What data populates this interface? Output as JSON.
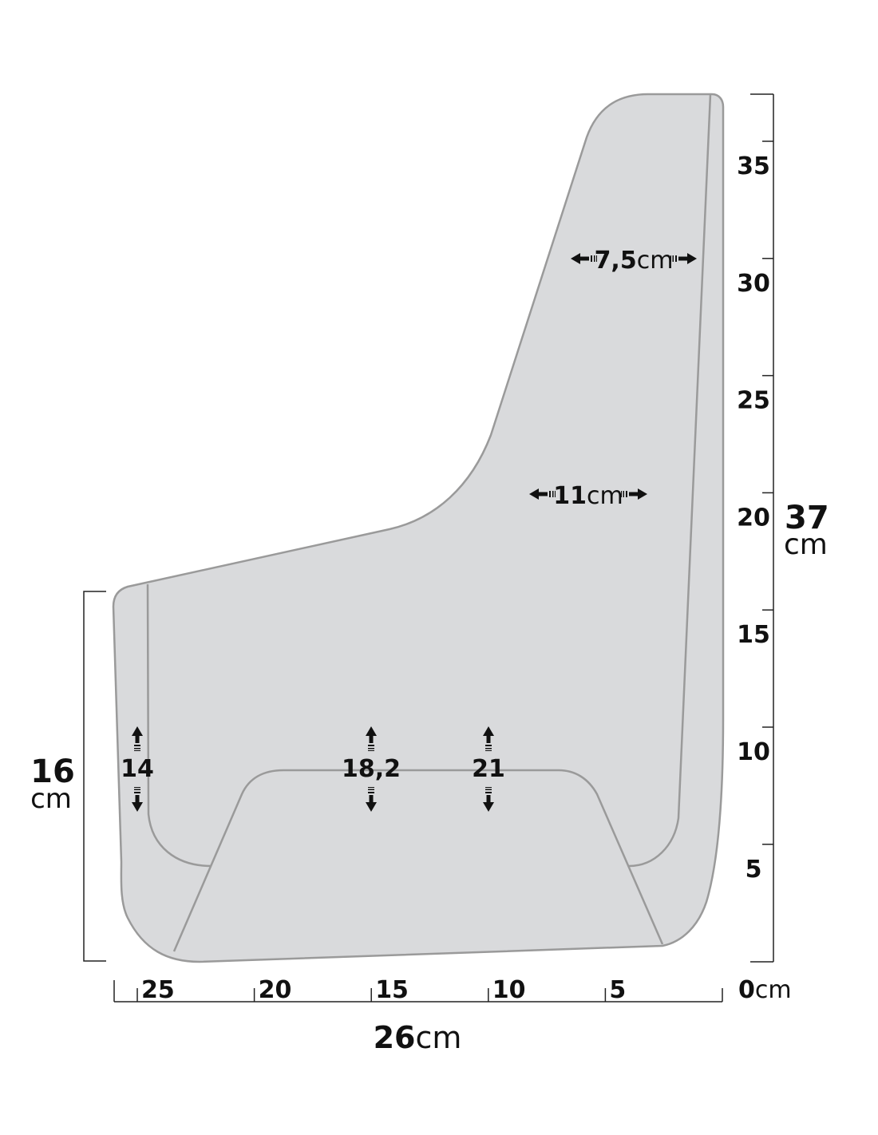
{
  "right_scale": {
    "ticks": [
      "35",
      "30",
      "25",
      "20",
      "15",
      "10",
      "5"
    ],
    "total": "37",
    "unit": "cm"
  },
  "bottom_scale": {
    "ticks": [
      "25",
      "20",
      "15",
      "10",
      "5",
      "0"
    ],
    "unit": "cm",
    "total": "26",
    "total_unit": "cm"
  },
  "left_dimension": {
    "value": "16",
    "unit": "cm"
  },
  "widths": [
    {
      "value": "7,5",
      "unit": "cm"
    },
    {
      "value": "11",
      "unit": "cm"
    }
  ],
  "heights": [
    "14",
    "18,2",
    "21"
  ]
}
